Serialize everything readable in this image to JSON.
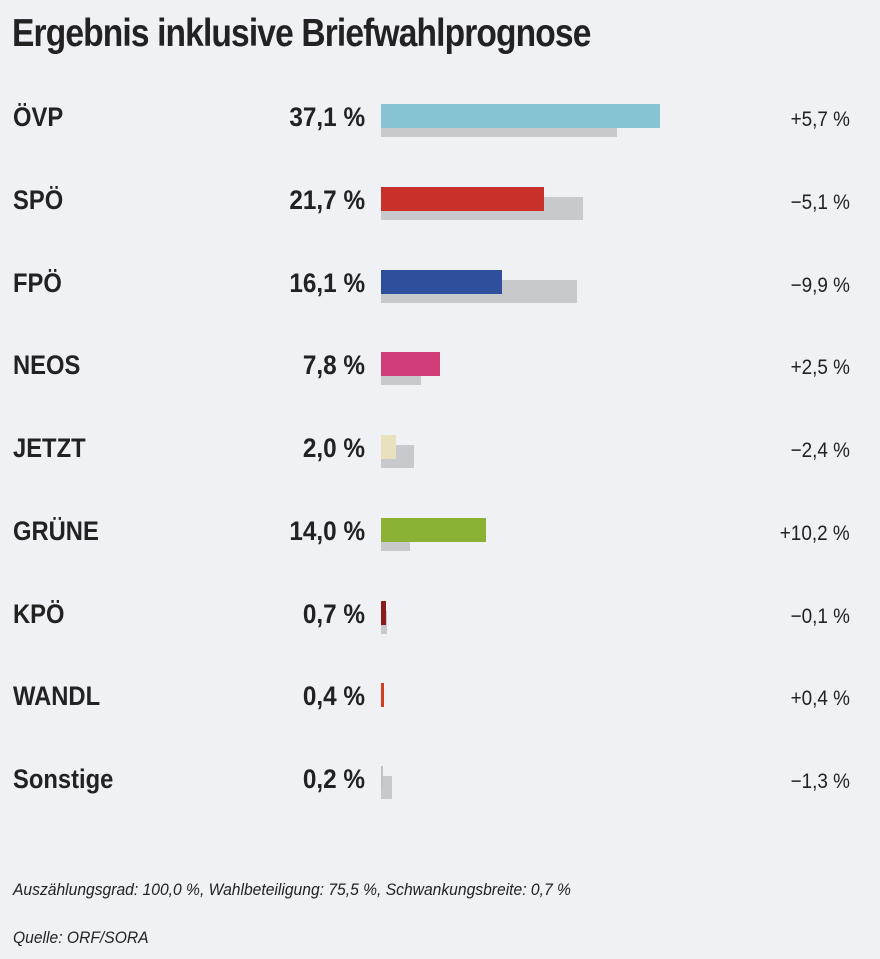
{
  "chart_data": {
    "type": "bar",
    "title": "Ergebnis inklusive Briefwahlprognose",
    "unit": "%",
    "xlim": [
      0,
      40
    ],
    "categories": [
      "ÖVP",
      "SPÖ",
      "FPÖ",
      "NEOS",
      "JETZT",
      "GRÜNE",
      "KPÖ",
      "WANDL",
      "Sonstige"
    ],
    "series": [
      {
        "name": "current",
        "values": [
          37.1,
          21.7,
          16.1,
          7.8,
          2.0,
          14.0,
          0.7,
          0.4,
          0.2
        ]
      },
      {
        "name": "previous",
        "values": [
          31.4,
          26.8,
          26.0,
          5.3,
          4.4,
          3.8,
          0.8,
          0.0,
          1.5
        ]
      }
    ],
    "value_labels": [
      "37,1 %",
      "21,7 %",
      "16,1 %",
      "7,8 %",
      "2,0 %",
      "14,0 %",
      "0,7 %",
      "0,4 %",
      "0,2 %"
    ],
    "diff_labels": [
      "+5,7 %",
      "−5,1 %",
      "−9,9 %",
      "+2,5 %",
      "−2,4 %",
      "+10,2 %",
      "−0,1 %",
      "+0,4 %",
      "−1,3 %"
    ],
    "colors": [
      "#86c3d3",
      "#c8302a",
      "#2d4f9c",
      "#d03d78",
      "#e8e0bf",
      "#8bb135",
      "#8a1c1c",
      "#d04020",
      "#c0c2c6"
    ],
    "previous_color": "#c7c9cd",
    "footnote": "Auszählungsgrad: 100,0 %, Wahlbeteiligung: 75,5 %, Schwankungsbreite: 0,7 %",
    "source": "Quelle: ORF/SORA"
  }
}
